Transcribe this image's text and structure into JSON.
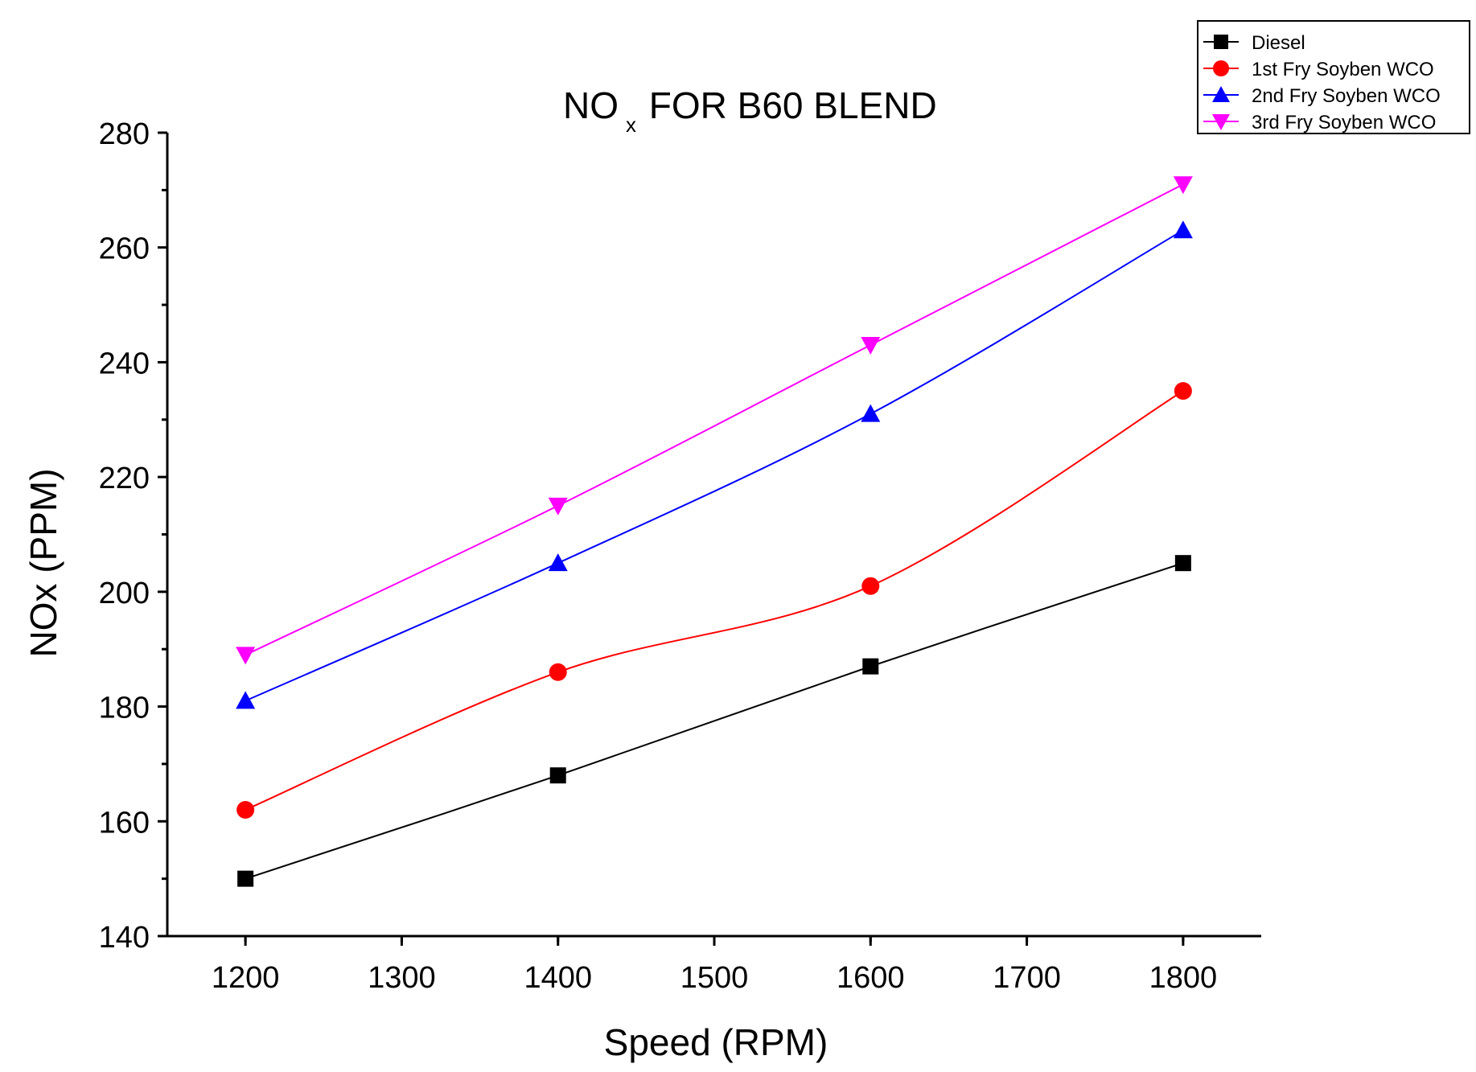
{
  "chart_data": {
    "type": "line",
    "title": {
      "main": "NO",
      "sub": "x",
      "rest": " FOR B60 BLEND"
    },
    "xlabel": "Speed (RPM)",
    "ylabel": "NOx (PPM)",
    "xlim": [
      1150,
      1850
    ],
    "ylim": [
      140,
      280
    ],
    "xticks": [
      1200,
      1300,
      1400,
      1500,
      1600,
      1700,
      1800
    ],
    "yticks": [
      140,
      160,
      180,
      200,
      220,
      240,
      260,
      280
    ],
    "x": [
      1200,
      1400,
      1600,
      1800
    ],
    "legend_position": "top-right, outside plot",
    "series": [
      {
        "name": "Diesel",
        "marker": "square",
        "color": "#000000",
        "values": [
          150,
          168,
          187,
          205
        ]
      },
      {
        "name": "1st Fry Soyben WCO",
        "marker": "circle",
        "color": "#ff0000",
        "values": [
          162,
          186,
          201,
          235
        ]
      },
      {
        "name": "2nd Fry Soyben WCO",
        "marker": "triangle-up",
        "color": "#0000ff",
        "values": [
          181,
          205,
          231,
          263
        ]
      },
      {
        "name": "3rd Fry Soyben WCO",
        "marker": "triangle-down",
        "color": "#ff00ff",
        "values": [
          189,
          215,
          243,
          271
        ]
      }
    ]
  }
}
